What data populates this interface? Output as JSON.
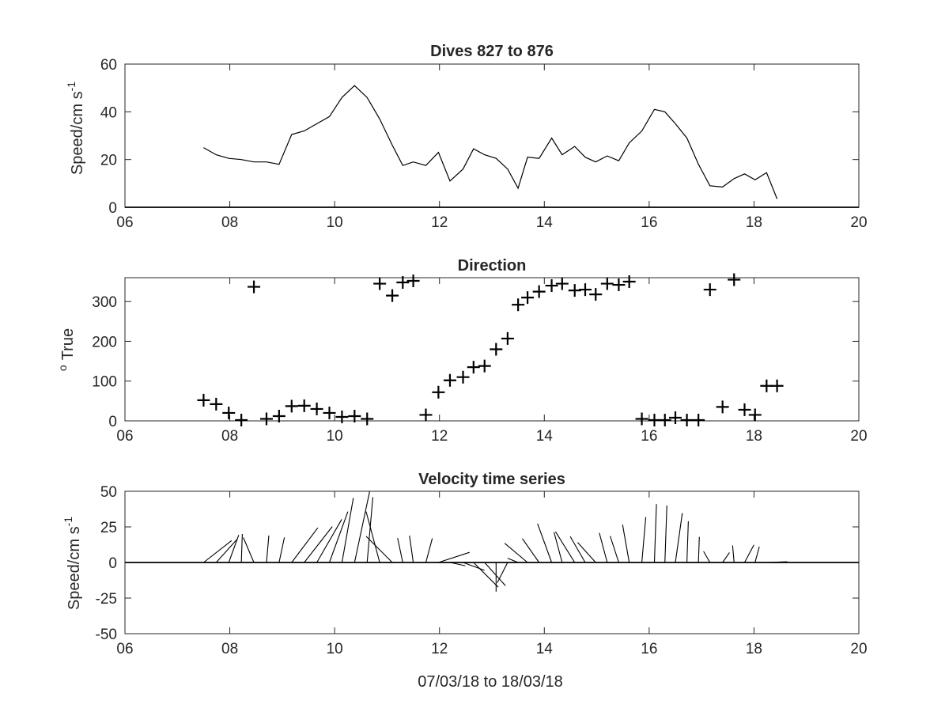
{
  "chart_data": [
    {
      "type": "line",
      "title": "Dives 827 to 876",
      "ylabel": "Speed/cm s",
      "ylabel_superscript": "-1",
      "xlim": [
        6,
        20
      ],
      "ylim": [
        0,
        60
      ],
      "xticks": [
        6,
        8,
        10,
        12,
        14,
        16,
        18,
        20
      ],
      "xtick_labels": [
        "06",
        "08",
        "10",
        "12",
        "14",
        "16",
        "18",
        "20"
      ],
      "yticks": [
        0,
        20,
        40,
        60
      ],
      "ytick_labels": [
        "0",
        "20",
        "40",
        "60"
      ],
      "baseline": 0,
      "x": [
        7.5,
        7.74,
        7.98,
        8.22,
        8.46,
        8.7,
        8.94,
        9.18,
        9.42,
        9.66,
        9.9,
        10.14,
        10.38,
        10.62,
        10.86,
        11.1,
        11.3,
        11.5,
        11.74,
        11.98,
        12.2,
        12.45,
        12.65,
        12.86,
        13.08,
        13.3,
        13.5,
        13.68,
        13.9,
        14.14,
        14.34,
        14.58,
        14.78,
        14.98,
        15.2,
        15.42,
        15.62,
        15.86,
        16.1,
        16.3,
        16.5,
        16.72,
        16.94,
        17.16,
        17.4,
        17.62,
        17.82,
        18.02,
        18.24,
        18.44
      ],
      "y": [
        25,
        22,
        20.5,
        20,
        19,
        19,
        18,
        30.5,
        32,
        35,
        38,
        46,
        51,
        46,
        37,
        26,
        17.5,
        19,
        17.5,
        23,
        11,
        16,
        24.5,
        22,
        20.5,
        16,
        8,
        21,
        20.5,
        29,
        22,
        25.5,
        21,
        19,
        21.5,
        19.5,
        27,
        32,
        41,
        40,
        35,
        29,
        18,
        9,
        8.5,
        12,
        14,
        11.5,
        14.5,
        3.5
      ]
    },
    {
      "type": "scatter",
      "title": "Direction",
      "ylabel": "True",
      "ylabel_prefix_superscript": "o",
      "xlim": [
        6,
        20
      ],
      "ylim": [
        0,
        360
      ],
      "xticks": [
        6,
        8,
        10,
        12,
        14,
        16,
        18,
        20
      ],
      "xtick_labels": [
        "06",
        "08",
        "10",
        "12",
        "14",
        "16",
        "18",
        "20"
      ],
      "yticks": [
        0,
        100,
        200,
        300
      ],
      "ytick_labels": [
        "0",
        "100",
        "200",
        "300"
      ],
      "marker": "+",
      "x": [
        7.5,
        7.74,
        7.98,
        8.22,
        8.46,
        8.7,
        8.94,
        9.18,
        9.42,
        9.66,
        9.9,
        10.14,
        10.38,
        10.62,
        10.86,
        11.1,
        11.3,
        11.5,
        11.74,
        11.98,
        12.2,
        12.45,
        12.65,
        12.86,
        13.08,
        13.3,
        13.5,
        13.68,
        13.9,
        14.14,
        14.34,
        14.58,
        14.78,
        14.98,
        15.2,
        15.42,
        15.62,
        15.86,
        16.1,
        16.3,
        16.5,
        16.72,
        16.94,
        17.16,
        17.4,
        17.62,
        17.82,
        18.02,
        18.24,
        18.44
      ],
      "y": [
        52,
        42,
        20,
        2,
        337,
        5,
        12,
        37,
        38,
        30,
        20,
        10,
        12,
        5,
        345,
        315,
        348,
        352,
        15,
        72,
        102,
        110,
        135,
        138,
        180,
        207,
        292,
        310,
        325,
        340,
        345,
        328,
        330,
        318,
        345,
        342,
        350,
        5,
        2,
        2,
        8,
        2,
        2,
        330,
        35,
        355,
        28,
        15,
        88,
        88
      ]
    },
    {
      "type": "vector",
      "title": "Velocity time series",
      "ylabel": "Speed/cm s",
      "ylabel_superscript": "-1",
      "xlabel": "07/03/18 to 18/03/18",
      "xlim": [
        6,
        20
      ],
      "ylim": [
        -50,
        50
      ],
      "xticks": [
        6,
        8,
        10,
        12,
        14,
        16,
        18,
        20
      ],
      "xtick_labels": [
        "06",
        "08",
        "10",
        "12",
        "14",
        "16",
        "18",
        "20"
      ],
      "yticks": [
        -50,
        -25,
        0,
        25,
        50
      ],
      "ytick_labels": [
        "-50",
        "-25",
        "0",
        "25",
        "50"
      ],
      "baseline": 0
    }
  ]
}
